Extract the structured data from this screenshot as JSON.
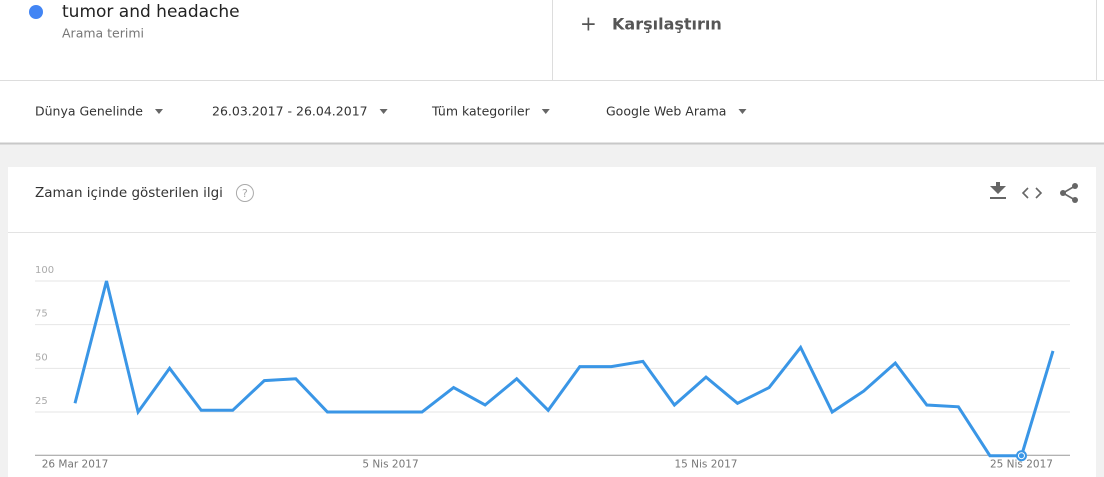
{
  "search": {
    "term": "tumor and headache",
    "subtitle": "Arama terimi"
  },
  "compare": {
    "icon": "+",
    "label": "Karşılaştırın"
  },
  "filters": [
    "Dünya Genelinde",
    "26.03.2017 - 26.04.2017",
    "Tüm kategoriler",
    "Google Web Arama"
  ],
  "card": {
    "title": "Zaman içinde gösterilen ilgi",
    "help": "?"
  },
  "chart_data": {
    "type": "line",
    "color": "#3a96e6",
    "categories": [
      "26 Mar 2017",
      null,
      null,
      null,
      null,
      null,
      null,
      null,
      null,
      null,
      "5 Nis 2017",
      null,
      null,
      null,
      null,
      null,
      null,
      null,
      null,
      null,
      "15 Nis 2017",
      null,
      null,
      null,
      null,
      null,
      null,
      null,
      null,
      null,
      "25 Nis 2017",
      null
    ],
    "values": [
      30,
      100,
      25,
      50,
      26,
      26,
      43,
      44,
      25,
      25,
      25,
      25,
      39,
      29,
      44,
      26,
      51,
      51,
      54,
      29,
      45,
      30,
      39,
      62,
      25,
      37,
      53,
      29,
      28,
      0,
      0,
      60
    ],
    "ylim": [
      0,
      125
    ],
    "yticks": [
      25,
      50,
      75,
      100
    ],
    "grid": true
  }
}
